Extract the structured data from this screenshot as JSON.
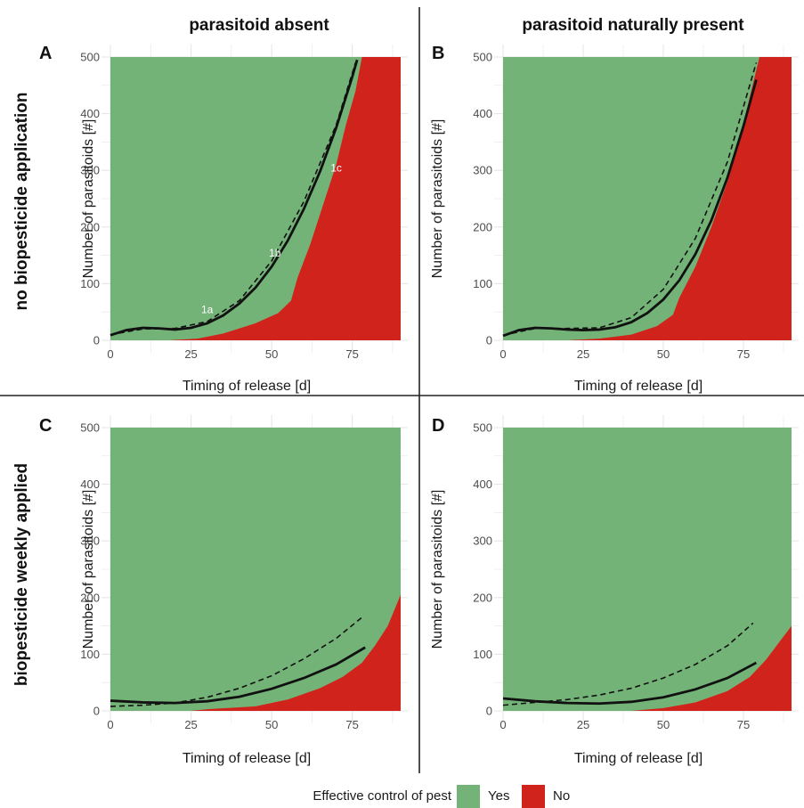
{
  "column_titles": [
    "parasitoid absent",
    "parasitoid naturally present"
  ],
  "row_titles": [
    "no biopesticide application",
    "biopesticide weekly applied"
  ],
  "legend": {
    "title": "Effective control of pest",
    "items": [
      {
        "label": "Yes",
        "color": "#74b377"
      },
      {
        "label": "No",
        "color": "#d0231c"
      }
    ]
  },
  "chart_data": [
    {
      "panel": "A",
      "type": "heatmap",
      "xlabel": "Timing of release [d]",
      "ylabel": "Number of parasitoids [#]",
      "xlim": [
        0,
        90
      ],
      "ylim": [
        0,
        500
      ],
      "xticks": [
        "0",
        "25",
        "50",
        "75"
      ],
      "yticks": [
        "0",
        "100",
        "200",
        "300",
        "400",
        "500"
      ],
      "grid": true,
      "no_region_lower_left_edge": [
        [
          18,
          0
        ],
        [
          27,
          3
        ],
        [
          35,
          12
        ],
        [
          45,
          30
        ],
        [
          52,
          48
        ],
        [
          56,
          70
        ],
        [
          58,
          110
        ],
        [
          62,
          170
        ],
        [
          66,
          240
        ],
        [
          70,
          310
        ],
        [
          73,
          380
        ],
        [
          76,
          440
        ],
        [
          78,
          500
        ]
      ],
      "fitted_curve_solid": [
        [
          0,
          9
        ],
        [
          5,
          18
        ],
        [
          10,
          22
        ],
        [
          15,
          21
        ],
        [
          20,
          19
        ],
        [
          25,
          22
        ],
        [
          30,
          30
        ],
        [
          35,
          44
        ],
        [
          40,
          65
        ],
        [
          45,
          93
        ],
        [
          50,
          130
        ],
        [
          55,
          176
        ],
        [
          60,
          232
        ],
        [
          65,
          298
        ],
        [
          70,
          375
        ],
        [
          75,
          465
        ],
        [
          76.5,
          495
        ]
      ],
      "fitted_curve_dashed": [
        [
          0,
          10
        ],
        [
          10,
          20
        ],
        [
          20,
          21
        ],
        [
          30,
          33
        ],
        [
          40,
          70
        ],
        [
          50,
          140
        ],
        [
          60,
          245
        ],
        [
          70,
          380
        ],
        [
          76,
          490
        ]
      ],
      "annotations": [
        {
          "text": "1a",
          "x": 30,
          "y": 48
        },
        {
          "text": "1b",
          "x": 51,
          "y": 148
        },
        {
          "text": "1c",
          "x": 70,
          "y": 298
        }
      ]
    },
    {
      "panel": "B",
      "type": "heatmap",
      "xlabel": "Timing of release [d]",
      "ylabel": "Number of parasitoids [#]",
      "xlim": [
        0,
        90
      ],
      "ylim": [
        0,
        500
      ],
      "xticks": [
        "0",
        "25",
        "50",
        "75"
      ],
      "yticks": [
        "0",
        "100",
        "200",
        "300",
        "400",
        "500"
      ],
      "grid": true,
      "no_region_lower_left_edge": [
        [
          20,
          0
        ],
        [
          30,
          3
        ],
        [
          40,
          10
        ],
        [
          48,
          25
        ],
        [
          53,
          45
        ],
        [
          55,
          75
        ],
        [
          60,
          130
        ],
        [
          65,
          200
        ],
        [
          70,
          280
        ],
        [
          74,
          360
        ],
        [
          77,
          430
        ],
        [
          80,
          500
        ]
      ],
      "fitted_curve_solid": [
        [
          0,
          8
        ],
        [
          5,
          18
        ],
        [
          10,
          22
        ],
        [
          15,
          21
        ],
        [
          20,
          19
        ],
        [
          25,
          18
        ],
        [
          30,
          19
        ],
        [
          35,
          23
        ],
        [
          40,
          32
        ],
        [
          45,
          48
        ],
        [
          50,
          72
        ],
        [
          55,
          106
        ],
        [
          60,
          152
        ],
        [
          65,
          212
        ],
        [
          70,
          287
        ],
        [
          75,
          378
        ],
        [
          79,
          460
        ]
      ],
      "fitted_curve_dashed": [
        [
          0,
          9
        ],
        [
          10,
          21
        ],
        [
          20,
          21
        ],
        [
          30,
          22
        ],
        [
          40,
          40
        ],
        [
          50,
          90
        ],
        [
          60,
          180
        ],
        [
          70,
          315
        ],
        [
          79,
          490
        ]
      ]
    },
    {
      "panel": "C",
      "type": "heatmap",
      "xlabel": "Timing of release [d]",
      "ylabel": "Number of parasitoids [#]",
      "xlim": [
        0,
        90
      ],
      "ylim": [
        0,
        500
      ],
      "xticks": [
        "0",
        "25",
        "50",
        "75"
      ],
      "yticks": [
        "0",
        "100",
        "200",
        "300",
        "400",
        "500"
      ],
      "grid": true,
      "no_region_lower_left_edge": [
        [
          25,
          0
        ],
        [
          30,
          3
        ],
        [
          45,
          8
        ],
        [
          55,
          20
        ],
        [
          65,
          40
        ],
        [
          72,
          60
        ],
        [
          78,
          85
        ],
        [
          82,
          115
        ],
        [
          86,
          150
        ],
        [
          90,
          205
        ]
      ],
      "fitted_curve_solid": [
        [
          0,
          18
        ],
        [
          10,
          15
        ],
        [
          20,
          14
        ],
        [
          30,
          17
        ],
        [
          40,
          25
        ],
        [
          50,
          39
        ],
        [
          60,
          58
        ],
        [
          70,
          82
        ],
        [
          79,
          112
        ]
      ],
      "fitted_curve_dashed": [
        [
          0,
          8
        ],
        [
          10,
          10
        ],
        [
          20,
          14
        ],
        [
          30,
          24
        ],
        [
          40,
          40
        ],
        [
          50,
          62
        ],
        [
          60,
          92
        ],
        [
          70,
          128
        ],
        [
          78,
          165
        ]
      ]
    },
    {
      "panel": "D",
      "type": "heatmap",
      "xlabel": "Timing of release [d]",
      "ylabel": "Number of parasitoids [#]",
      "xlim": [
        0,
        90
      ],
      "ylim": [
        0,
        500
      ],
      "xticks": [
        "0",
        "25",
        "50",
        "75"
      ],
      "yticks": [
        "0",
        "100",
        "200",
        "300",
        "400",
        "500"
      ],
      "grid": true,
      "no_region_lower_left_edge": [
        [
          40,
          0
        ],
        [
          50,
          5
        ],
        [
          60,
          15
        ],
        [
          70,
          35
        ],
        [
          77,
          60
        ],
        [
          82,
          90
        ],
        [
          86,
          120
        ],
        [
          90,
          150
        ]
      ],
      "fitted_curve_solid": [
        [
          0,
          22
        ],
        [
          10,
          17
        ],
        [
          20,
          14
        ],
        [
          30,
          13
        ],
        [
          40,
          16
        ],
        [
          50,
          24
        ],
        [
          60,
          38
        ],
        [
          70,
          58
        ],
        [
          79,
          85
        ]
      ],
      "fitted_curve_dashed": [
        [
          0,
          10
        ],
        [
          10,
          15
        ],
        [
          20,
          20
        ],
        [
          30,
          28
        ],
        [
          40,
          40
        ],
        [
          50,
          58
        ],
        [
          60,
          82
        ],
        [
          70,
          115
        ],
        [
          78,
          155
        ]
      ]
    }
  ]
}
